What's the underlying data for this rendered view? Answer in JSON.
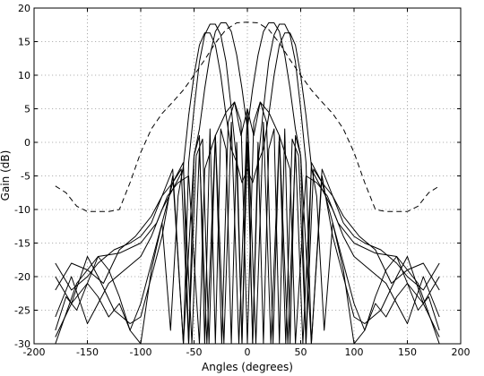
{
  "chart_data": {
    "type": "line",
    "xlabel": "Angles (degrees)",
    "ylabel": "Gain (dB)",
    "xlim": [
      -200,
      200
    ],
    "ylim": [
      -30,
      20
    ],
    "xticks": [
      -200,
      -150,
      -100,
      -50,
      0,
      50,
      100,
      150,
      200
    ],
    "yticks": [
      -30,
      -25,
      -20,
      -15,
      -10,
      -5,
      0,
      5,
      10,
      15,
      20
    ],
    "grid": true,
    "series": [
      {
        "style": "dashed",
        "x": [
          -180,
          -170,
          -160,
          -150,
          -140,
          -130,
          -120,
          -110,
          -100,
          -90,
          -80,
          -70,
          -60,
          -50,
          -40,
          -30,
          -20,
          -10,
          0,
          10,
          20,
          30,
          40,
          50,
          60,
          70,
          80,
          90,
          100,
          110,
          120,
          130,
          140,
          150,
          160,
          170,
          180
        ],
        "y": [
          -6.5,
          -7.5,
          -9.5,
          -10.3,
          -10.3,
          -10.3,
          -10,
          -6,
          -1.5,
          2,
          4.3,
          6,
          7.8,
          10,
          12.3,
          14.8,
          16.8,
          17.8,
          17.9,
          17.8,
          16.8,
          14.8,
          12.3,
          10,
          7.8,
          6,
          4.3,
          2,
          -1.5,
          -6,
          -10,
          -10.3,
          -10.3,
          -10.3,
          -9.5,
          -7.5,
          -6.5
        ]
      },
      {
        "style": "solid",
        "x": [
          -180,
          -165,
          -150,
          -140,
          -130,
          -120,
          -110,
          -100,
          -90,
          -80,
          -72,
          -65,
          -60,
          -55,
          -50,
          -45,
          -40,
          -35,
          -30,
          -25,
          -20,
          -15,
          -10,
          -5,
          0,
          5,
          10,
          15,
          20,
          25,
          30,
          35,
          40,
          45,
          50,
          55,
          60,
          65,
          72,
          80,
          90,
          100,
          110,
          120,
          130,
          140,
          150,
          165,
          180
        ],
        "y": [
          -29,
          -24,
          -21,
          -17,
          -19,
          -23,
          -28,
          -24,
          -18,
          -12,
          -28,
          -8,
          -3.5,
          4,
          10,
          14.5,
          16.3,
          16.3,
          14.5,
          10,
          4,
          -1,
          -3,
          -6,
          -4,
          -6,
          -3,
          -1,
          4,
          10,
          14.5,
          16.3,
          16.3,
          14.5,
          10,
          4,
          -3.5,
          -8,
          -28,
          -12,
          -18,
          -24,
          -28,
          -23,
          -19,
          -17,
          -21,
          -24,
          -29
        ]
      },
      {
        "style": "solid",
        "x": [
          -180,
          -165,
          -150,
          -140,
          -125,
          -110,
          -100,
          -90,
          -80,
          -70,
          -60,
          -55,
          -50,
          -45,
          -40,
          -35,
          -30,
          -25,
          -20,
          -15,
          -10,
          -5,
          0,
          5,
          10,
          15,
          20,
          25,
          30,
          35,
          40,
          45,
          50,
          55,
          60,
          70,
          80,
          90,
          100,
          110,
          125,
          140,
          150,
          165,
          180
        ],
        "y": [
          -20,
          -24,
          -17,
          -20,
          -25,
          -27,
          -26,
          -20,
          -14,
          -5,
          -30,
          -3,
          5,
          12,
          16,
          17.6,
          17.6,
          16,
          12,
          5,
          -3,
          -30,
          5,
          -30,
          -3,
          5,
          12,
          16,
          17.6,
          17.6,
          16,
          12,
          5,
          -3,
          -30,
          -5,
          -14,
          -20,
          -26,
          -27,
          -25,
          -20,
          -17,
          -24,
          -20
        ]
      },
      {
        "style": "solid",
        "x": [
          -180,
          -165,
          -150,
          -140,
          -125,
          -110,
          -100,
          -90,
          -80,
          -70,
          -60,
          -50,
          -45,
          -40,
          -35,
          -30,
          -25,
          -20,
          -15,
          -10,
          -5,
          0,
          5,
          10,
          15,
          20,
          25,
          30,
          35,
          40,
          45,
          50,
          60,
          70,
          80,
          90,
          100,
          110,
          125,
          140,
          150,
          165,
          180
        ],
        "y": [
          -18,
          -22,
          -20,
          -18,
          -16,
          -15,
          -14,
          -12,
          -8,
          -4,
          -30,
          -2,
          2,
          8,
          13,
          16.5,
          17.8,
          17.8,
          16.5,
          13,
          8,
          2,
          8,
          13,
          16.5,
          17.8,
          17.8,
          16.5,
          13,
          8,
          2,
          -2,
          -30,
          -4,
          -8,
          -12,
          -14,
          -15,
          -16,
          -18,
          -20,
          -22,
          -18
        ]
      },
      {
        "style": "solid",
        "x": [
          -180,
          -160,
          -140,
          -120,
          -100,
          -85,
          -75,
          -65,
          -55,
          -45,
          -40,
          -30,
          -20,
          -12,
          -6,
          0,
          6,
          12,
          20,
          30,
          40,
          45,
          55,
          65,
          75,
          85,
          100,
          120,
          140,
          160,
          180
        ],
        "y": [
          -30,
          -21,
          -17,
          -16.5,
          -15,
          -12,
          -8,
          -6,
          -5,
          -30,
          -4,
          1,
          4.5,
          6,
          1,
          5,
          1,
          6,
          4.5,
          1,
          -4,
          -30,
          -5,
          -6,
          -8,
          -12,
          -15,
          -16.5,
          -17,
          -21,
          -30
        ]
      },
      {
        "style": "solid",
        "x": [
          -180,
          -165,
          -150,
          -135,
          -120,
          -105,
          -90,
          -80,
          -70,
          -62,
          -55,
          -48,
          -42,
          -36,
          -30,
          -24,
          -18,
          -12,
          -6,
          0,
          6,
          12,
          18,
          24,
          30,
          36,
          42,
          48,
          55,
          62,
          70,
          80,
          90,
          105,
          120,
          135,
          150,
          165,
          180
        ],
        "y": [
          -22,
          -18,
          -19,
          -21,
          -16,
          -14,
          -11,
          -8,
          -6,
          -4,
          -30,
          -2,
          0.5,
          -30,
          1,
          -30,
          3,
          6,
          3,
          -30,
          3,
          6,
          3,
          -30,
          1,
          -30,
          0.5,
          -2,
          -30,
          -4,
          -6,
          -8,
          -11,
          -14,
          -16,
          -21,
          -19,
          -18,
          -22
        ]
      },
      {
        "style": "solid",
        "x": [
          -180,
          -165,
          -150,
          -140,
          -130,
          -115,
          -100,
          -90,
          -80,
          -70,
          -60,
          -52,
          -45,
          -38,
          -30,
          -22,
          -15,
          -8,
          0,
          8,
          15,
          22,
          30,
          38,
          45,
          52,
          60,
          70,
          80,
          90,
          100,
          115,
          130,
          140,
          150,
          165,
          180
        ],
        "y": [
          -26,
          -20,
          -27,
          -24,
          -21,
          -19,
          -17,
          -14,
          -10,
          -7,
          -4,
          -30,
          -1,
          -30,
          1,
          -30,
          3,
          -30,
          4.5,
          -30,
          3,
          -30,
          1,
          -30,
          -1,
          -30,
          -4,
          -7,
          -10,
          -14,
          -17,
          -19,
          -21,
          -24,
          -27,
          -20,
          -26
        ]
      },
      {
        "style": "solid",
        "x": [
          -180,
          -170,
          -160,
          -150,
          -140,
          -130,
          -120,
          -110,
          -100,
          -90,
          -80,
          -70,
          -60,
          -55,
          -50,
          -45,
          -40,
          -35,
          -30,
          -25,
          -20,
          -15,
          -10,
          -5,
          0,
          5,
          10,
          15,
          20,
          25,
          30,
          35,
          40,
          45,
          50,
          55,
          60,
          70,
          80,
          90,
          100,
          110,
          120,
          130,
          140,
          150,
          160,
          170,
          180
        ],
        "y": [
          -28,
          -23,
          -25,
          -21,
          -23,
          -26,
          -24,
          -28,
          -30,
          -19,
          -12,
          -6,
          -3,
          -30,
          -2,
          1,
          -30,
          2,
          -30,
          2,
          -1,
          -30,
          0,
          -30,
          0,
          -30,
          0,
          -30,
          -1,
          2,
          -30,
          2,
          -30,
          1,
          -2,
          -30,
          -3,
          -6,
          -12,
          -19,
          -30,
          -28,
          -24,
          -26,
          -23,
          -21,
          -25,
          -23,
          -28
        ]
      }
    ]
  }
}
